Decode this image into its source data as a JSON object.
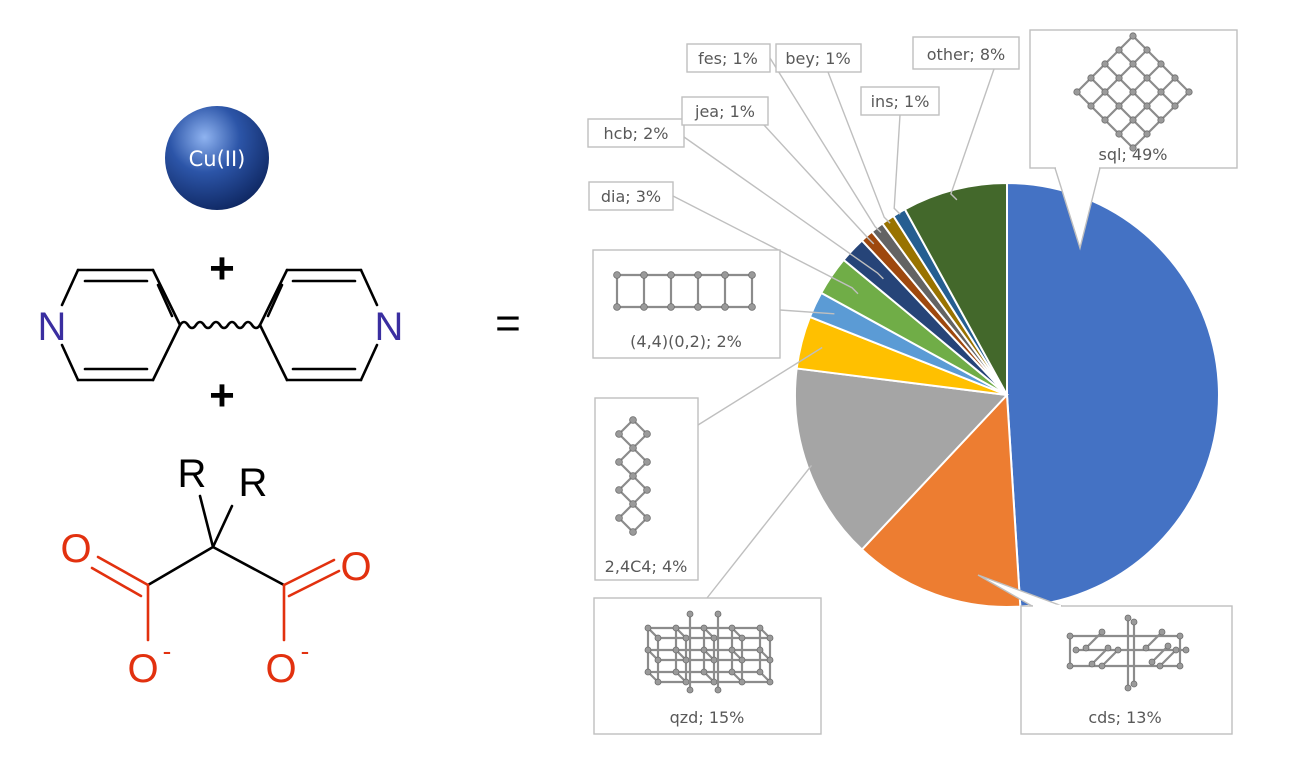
{
  "reaction": {
    "metal": "Cu(II)",
    "plus_1": "+",
    "plus_2": "+",
    "equals": "=",
    "nitrogen_left": "N",
    "nitrogen_right": "N",
    "r_left": "R",
    "r_right": "R",
    "oxygen_top_left": "O",
    "oxygen_top_right": "O",
    "oxygen_bottom_left": "O",
    "oxygen_bottom_right": "O",
    "charge_left": "-",
    "charge_right": "-"
  },
  "colors": {
    "metal_sphere": "#2c55a8",
    "nitrogen": "#3a2ea0",
    "oxygen": "#e2310f"
  },
  "chart_data": {
    "type": "pie",
    "title": "",
    "start_angle_deg": 0,
    "direction": "clockwise",
    "slices": [
      {
        "name": "sql",
        "label": "sql; 49%",
        "value": 49,
        "color": "#4472c4",
        "icon": "sql-net-icon"
      },
      {
        "name": "cds",
        "label": "cds; 13%",
        "value": 13,
        "color": "#ed7d31",
        "icon": "cds-net-icon"
      },
      {
        "name": "qzd",
        "label": "qzd; 15%",
        "value": 15,
        "color": "#a5a5a5",
        "icon": "qzd-net-icon"
      },
      {
        "name": "2,4C4",
        "label": "2,4C4; 4%",
        "value": 4,
        "color": "#ffc000",
        "icon": "chain-net-icon"
      },
      {
        "name": "(4,4)(0,2)",
        "label": "(4,4)(0,2); 2%",
        "value": 2,
        "color": "#5b9bd5",
        "icon": "ladder-net-icon"
      },
      {
        "name": "dia",
        "label": "dia; 3%",
        "value": 3,
        "color": "#70ad47",
        "icon": ""
      },
      {
        "name": "hcb",
        "label": "hcb; 2%",
        "value": 2,
        "color": "#264478",
        "icon": ""
      },
      {
        "name": "jea",
        "label": "jea; 1%",
        "value": 1,
        "color": "#9e480e",
        "icon": ""
      },
      {
        "name": "fes",
        "label": "fes; 1%",
        "value": 1,
        "color": "#636363",
        "icon": ""
      },
      {
        "name": "bey",
        "label": "bey; 1%",
        "value": 1,
        "color": "#997300",
        "icon": ""
      },
      {
        "name": "ins",
        "label": "ins; 1%",
        "value": 1,
        "color": "#255e91",
        "icon": ""
      },
      {
        "name": "other",
        "label": "other; 8%",
        "value": 8,
        "color": "#43682b",
        "icon": ""
      }
    ]
  }
}
